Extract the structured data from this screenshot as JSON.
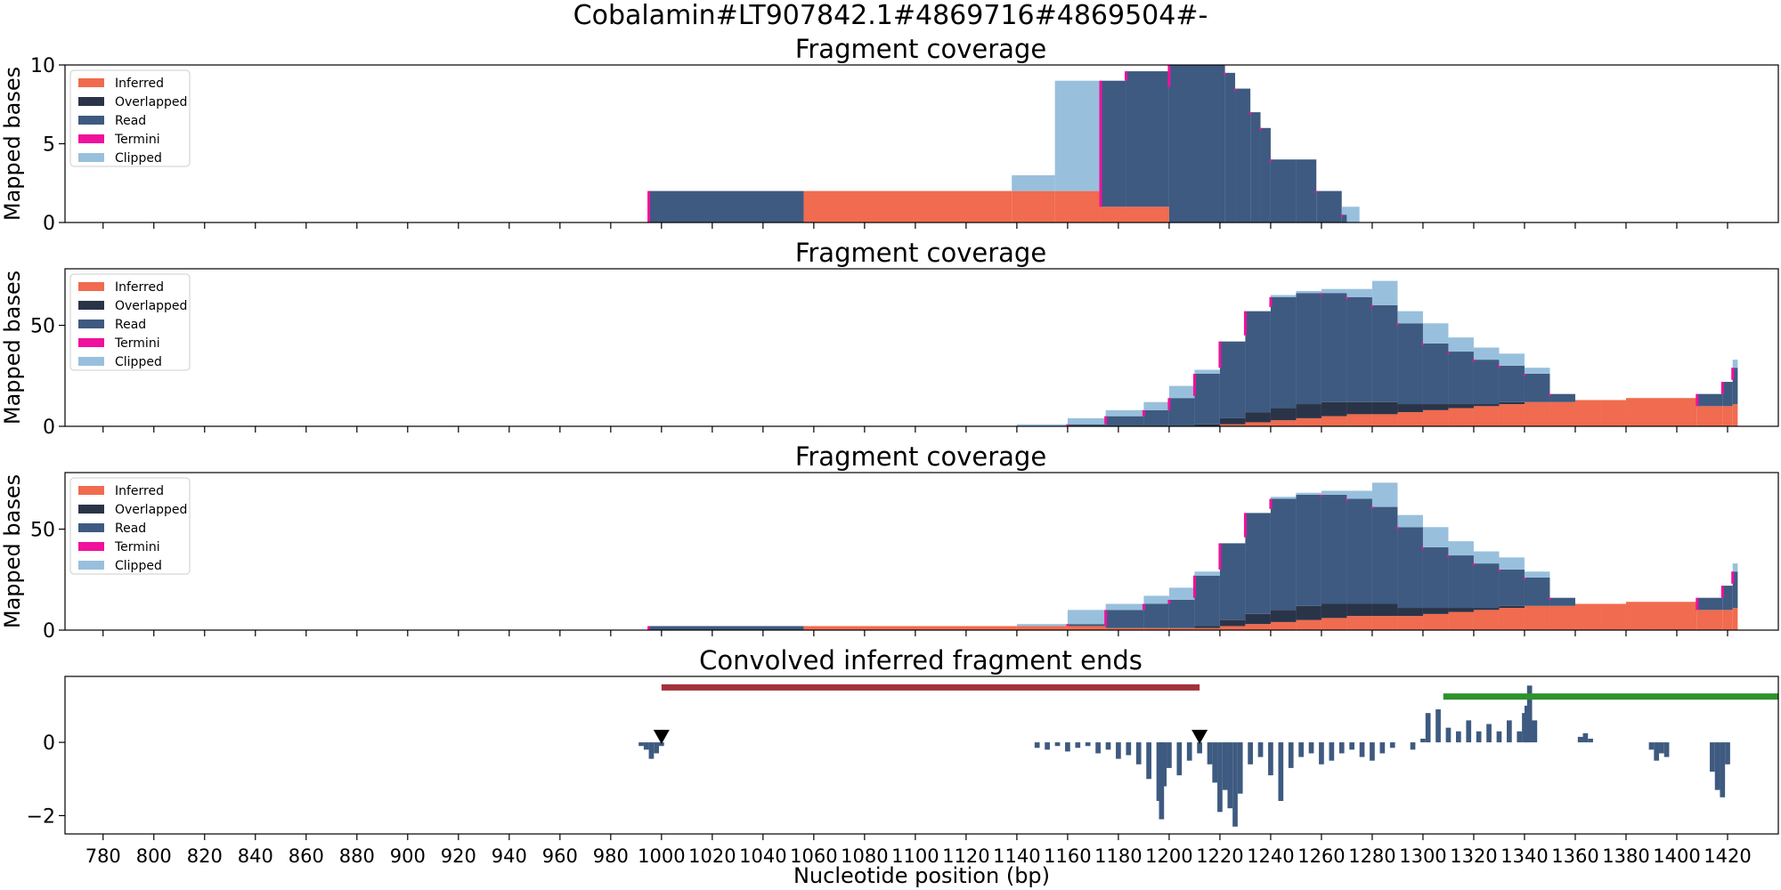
{
  "figure": {
    "suptitle": "Cobalamin#LT907842.1#4869716#4869504#-",
    "xlabel": "Nucleotide position (bp)"
  },
  "colors": {
    "inferred": "#f06b4f",
    "overlapped": "#2a3448",
    "read": "#3e5a80",
    "termini": "#f0119d",
    "clipped": "#98c0dc",
    "red_bar": "#a2323c",
    "green_bar": "#2e922e",
    "marker": "#000000",
    "signal": "#3e5a80"
  },
  "chart_data": [
    {
      "type": "area",
      "title": "Fragment coverage",
      "ylabel": "Mapped bases",
      "xlim": [
        765,
        1440
      ],
      "ylim": [
        0,
        10
      ],
      "yticks": [
        0,
        5,
        10
      ],
      "grid": false,
      "legend": {
        "placement": "top-left",
        "entries": [
          "Inferred",
          "Overlapped",
          "Read",
          "Termini",
          "Clipped"
        ]
      },
      "x": [
        995,
        1056,
        1138,
        1155,
        1173,
        1183,
        1200,
        1222,
        1226,
        1232,
        1236,
        1240,
        1250,
        1258,
        1268,
        1270,
        1275
      ],
      "series": [
        {
          "name": "Inferred",
          "values": [
            0,
            2,
            2,
            2,
            1,
            1,
            0,
            0,
            0,
            0,
            0,
            0,
            0,
            0,
            0,
            0,
            0
          ]
        },
        {
          "name": "Overlapped",
          "values": [
            0,
            0,
            0,
            0,
            0,
            0,
            0,
            0,
            0,
            0,
            0,
            0,
            0,
            0,
            0,
            0,
            0
          ]
        },
        {
          "name": "Read",
          "values": [
            2,
            0,
            0,
            0,
            8,
            8.6,
            10,
            9.5,
            8.5,
            7,
            6,
            4,
            4,
            2,
            0.5,
            0,
            0
          ]
        },
        {
          "name": "Clipped",
          "values": [
            0,
            0,
            1,
            7,
            0,
            0,
            0,
            0,
            0,
            0,
            0,
            0,
            0,
            0,
            0.5,
            1,
            0
          ]
        }
      ]
    },
    {
      "type": "area",
      "title": "Fragment coverage",
      "ylabel": "Mapped bases",
      "xlim": [
        765,
        1440
      ],
      "ylim": [
        0,
        78
      ],
      "yticks": [
        0,
        50
      ],
      "grid": false,
      "legend": {
        "placement": "top-left",
        "entries": [
          "Inferred",
          "Overlapped",
          "Read",
          "Termini",
          "Clipped"
        ]
      },
      "x": [
        1140,
        1160,
        1175,
        1190,
        1200,
        1210,
        1220,
        1230,
        1240,
        1250,
        1260,
        1270,
        1280,
        1290,
        1300,
        1310,
        1320,
        1330,
        1340,
        1350,
        1360,
        1370,
        1380,
        1390,
        1400,
        1408,
        1418,
        1422
      ],
      "series": [
        {
          "name": "Inferred",
          "values": [
            0,
            0,
            0,
            0,
            0,
            0,
            1,
            2,
            3,
            4,
            5,
            6,
            6,
            7,
            8,
            9,
            10,
            11,
            12,
            12,
            13,
            13,
            14,
            14,
            14,
            10,
            10,
            11
          ]
        },
        {
          "name": "Overlapped",
          "values": [
            0,
            0,
            0,
            0,
            0,
            1,
            3,
            5,
            6,
            7,
            7,
            6,
            6,
            4,
            3,
            2,
            1,
            1,
            0,
            0,
            0,
            0,
            0,
            0,
            0,
            0,
            0,
            0
          ]
        },
        {
          "name": "Read",
          "values": [
            0,
            1,
            5,
            8,
            14,
            25,
            38,
            50,
            55,
            55,
            54,
            52,
            48,
            40,
            30,
            26,
            22,
            18,
            14,
            4,
            0,
            0,
            0,
            0,
            0,
            6,
            12,
            18
          ]
        },
        {
          "name": "Clipped",
          "values": [
            1,
            3,
            3,
            4,
            6,
            2,
            0,
            0,
            1,
            1,
            2,
            4,
            12,
            6,
            10,
            7,
            6,
            6,
            3,
            0,
            0,
            0,
            0,
            0,
            0,
            0,
            0,
            4
          ]
        }
      ]
    },
    {
      "type": "area",
      "title": "Fragment coverage",
      "ylabel": "Mapped bases",
      "xlim": [
        765,
        1440
      ],
      "ylim": [
        0,
        78
      ],
      "yticks": [
        0,
        50
      ],
      "grid": false,
      "legend": {
        "placement": "top-left",
        "entries": [
          "Inferred",
          "Overlapped",
          "Read",
          "Termini",
          "Clipped"
        ]
      },
      "x": [
        995,
        1056,
        1140,
        1160,
        1175,
        1190,
        1200,
        1210,
        1220,
        1230,
        1240,
        1250,
        1260,
        1270,
        1280,
        1290,
        1300,
        1310,
        1320,
        1330,
        1340,
        1350,
        1360,
        1370,
        1380,
        1390,
        1400,
        1408,
        1418,
        1422
      ],
      "series": [
        {
          "name": "Inferred",
          "values": [
            0,
            2,
            2,
            2,
            1,
            1,
            1,
            1,
            2,
            3,
            4,
            5,
            6,
            7,
            7,
            7,
            8,
            9,
            10,
            11,
            12,
            12,
            13,
            13,
            14,
            14,
            14,
            10,
            10,
            11
          ]
        },
        {
          "name": "Overlapped",
          "values": [
            0,
            0,
            0,
            0,
            0,
            0,
            0,
            1,
            3,
            5,
            6,
            7,
            7,
            6,
            6,
            4,
            3,
            2,
            1,
            1,
            0,
            0,
            0,
            0,
            0,
            0,
            0,
            0,
            0,
            0
          ]
        },
        {
          "name": "Read",
          "values": [
            2,
            0,
            0,
            1,
            9,
            12,
            14,
            25,
            38,
            50,
            55,
            55,
            54,
            52,
            48,
            40,
            30,
            26,
            22,
            18,
            14,
            4,
            0,
            0,
            0,
            0,
            0,
            6,
            12,
            18
          ]
        },
        {
          "name": "Clipped",
          "values": [
            0,
            0,
            1,
            7,
            3,
            4,
            6,
            2,
            0,
            0,
            1,
            1,
            2,
            4,
            12,
            6,
            10,
            7,
            6,
            6,
            3,
            0,
            0,
            0,
            0,
            0,
            0,
            0,
            0,
            4
          ]
        }
      ]
    },
    {
      "type": "bar",
      "title": "Convolved inferred fragment ends",
      "ylabel": "",
      "xlabel": "Nucleotide position (bp)",
      "xlim": [
        765,
        1440
      ],
      "ylim": [
        -2.5,
        1.8
      ],
      "yticks": [
        -2,
        0
      ],
      "xticks": [
        780,
        800,
        820,
        840,
        860,
        880,
        900,
        920,
        940,
        960,
        980,
        1000,
        1020,
        1040,
        1060,
        1080,
        1100,
        1120,
        1140,
        1160,
        1180,
        1200,
        1220,
        1240,
        1260,
        1280,
        1300,
        1320,
        1340,
        1360,
        1380,
        1400,
        1420
      ],
      "grid": false,
      "spans": [
        {
          "color": "red_bar",
          "x0": 1000,
          "x1": 1212,
          "y": 1.5
        },
        {
          "color": "green_bar",
          "x0": 1308,
          "x1": 1440,
          "y": 1.25
        }
      ],
      "markers": [
        {
          "x": 1000,
          "y": 0.1
        },
        {
          "x": 1212,
          "y": 0.1
        }
      ],
      "x": [
        992,
        994,
        996,
        998,
        1000,
        1148,
        1152,
        1156,
        1160,
        1164,
        1168,
        1172,
        1176,
        1180,
        1184,
        1188,
        1192,
        1196,
        1197,
        1198,
        1200,
        1204,
        1208,
        1212,
        1216,
        1218,
        1220,
        1222,
        1224,
        1226,
        1228,
        1232,
        1236,
        1240,
        1244,
        1248,
        1252,
        1256,
        1260,
        1264,
        1268,
        1272,
        1276,
        1280,
        1284,
        1288,
        1296,
        1300,
        1302,
        1306,
        1310,
        1314,
        1318,
        1322,
        1326,
        1330,
        1334,
        1338,
        1340,
        1341,
        1342,
        1344,
        1362,
        1364,
        1366,
        1390,
        1392,
        1394,
        1396,
        1414,
        1416,
        1418,
        1420
      ],
      "values": [
        -0.1,
        -0.2,
        -0.45,
        -0.3,
        -0.1,
        -0.15,
        -0.2,
        -0.1,
        -0.25,
        -0.15,
        -0.1,
        -0.3,
        -0.2,
        -0.45,
        -0.35,
        -0.6,
        -1.0,
        -1.6,
        -2.1,
        -1.2,
        -0.7,
        -0.9,
        -0.5,
        -0.3,
        -0.6,
        -1.1,
        -1.9,
        -1.3,
        -1.8,
        -2.3,
        -1.4,
        -0.6,
        -0.4,
        -0.9,
        -1.6,
        -0.7,
        -0.4,
        -0.3,
        -0.6,
        -0.5,
        -0.3,
        -0.2,
        -0.4,
        -0.5,
        -0.3,
        -0.15,
        -0.2,
        0.1,
        0.8,
        0.9,
        0.4,
        0.3,
        0.6,
        0.3,
        0.5,
        0.3,
        0.6,
        0.3,
        0.8,
        1.0,
        1.55,
        0.6,
        0.15,
        0.25,
        0.1,
        -0.2,
        -0.5,
        -0.3,
        -0.4,
        -0.8,
        -1.3,
        -1.5,
        -0.6
      ]
    }
  ]
}
